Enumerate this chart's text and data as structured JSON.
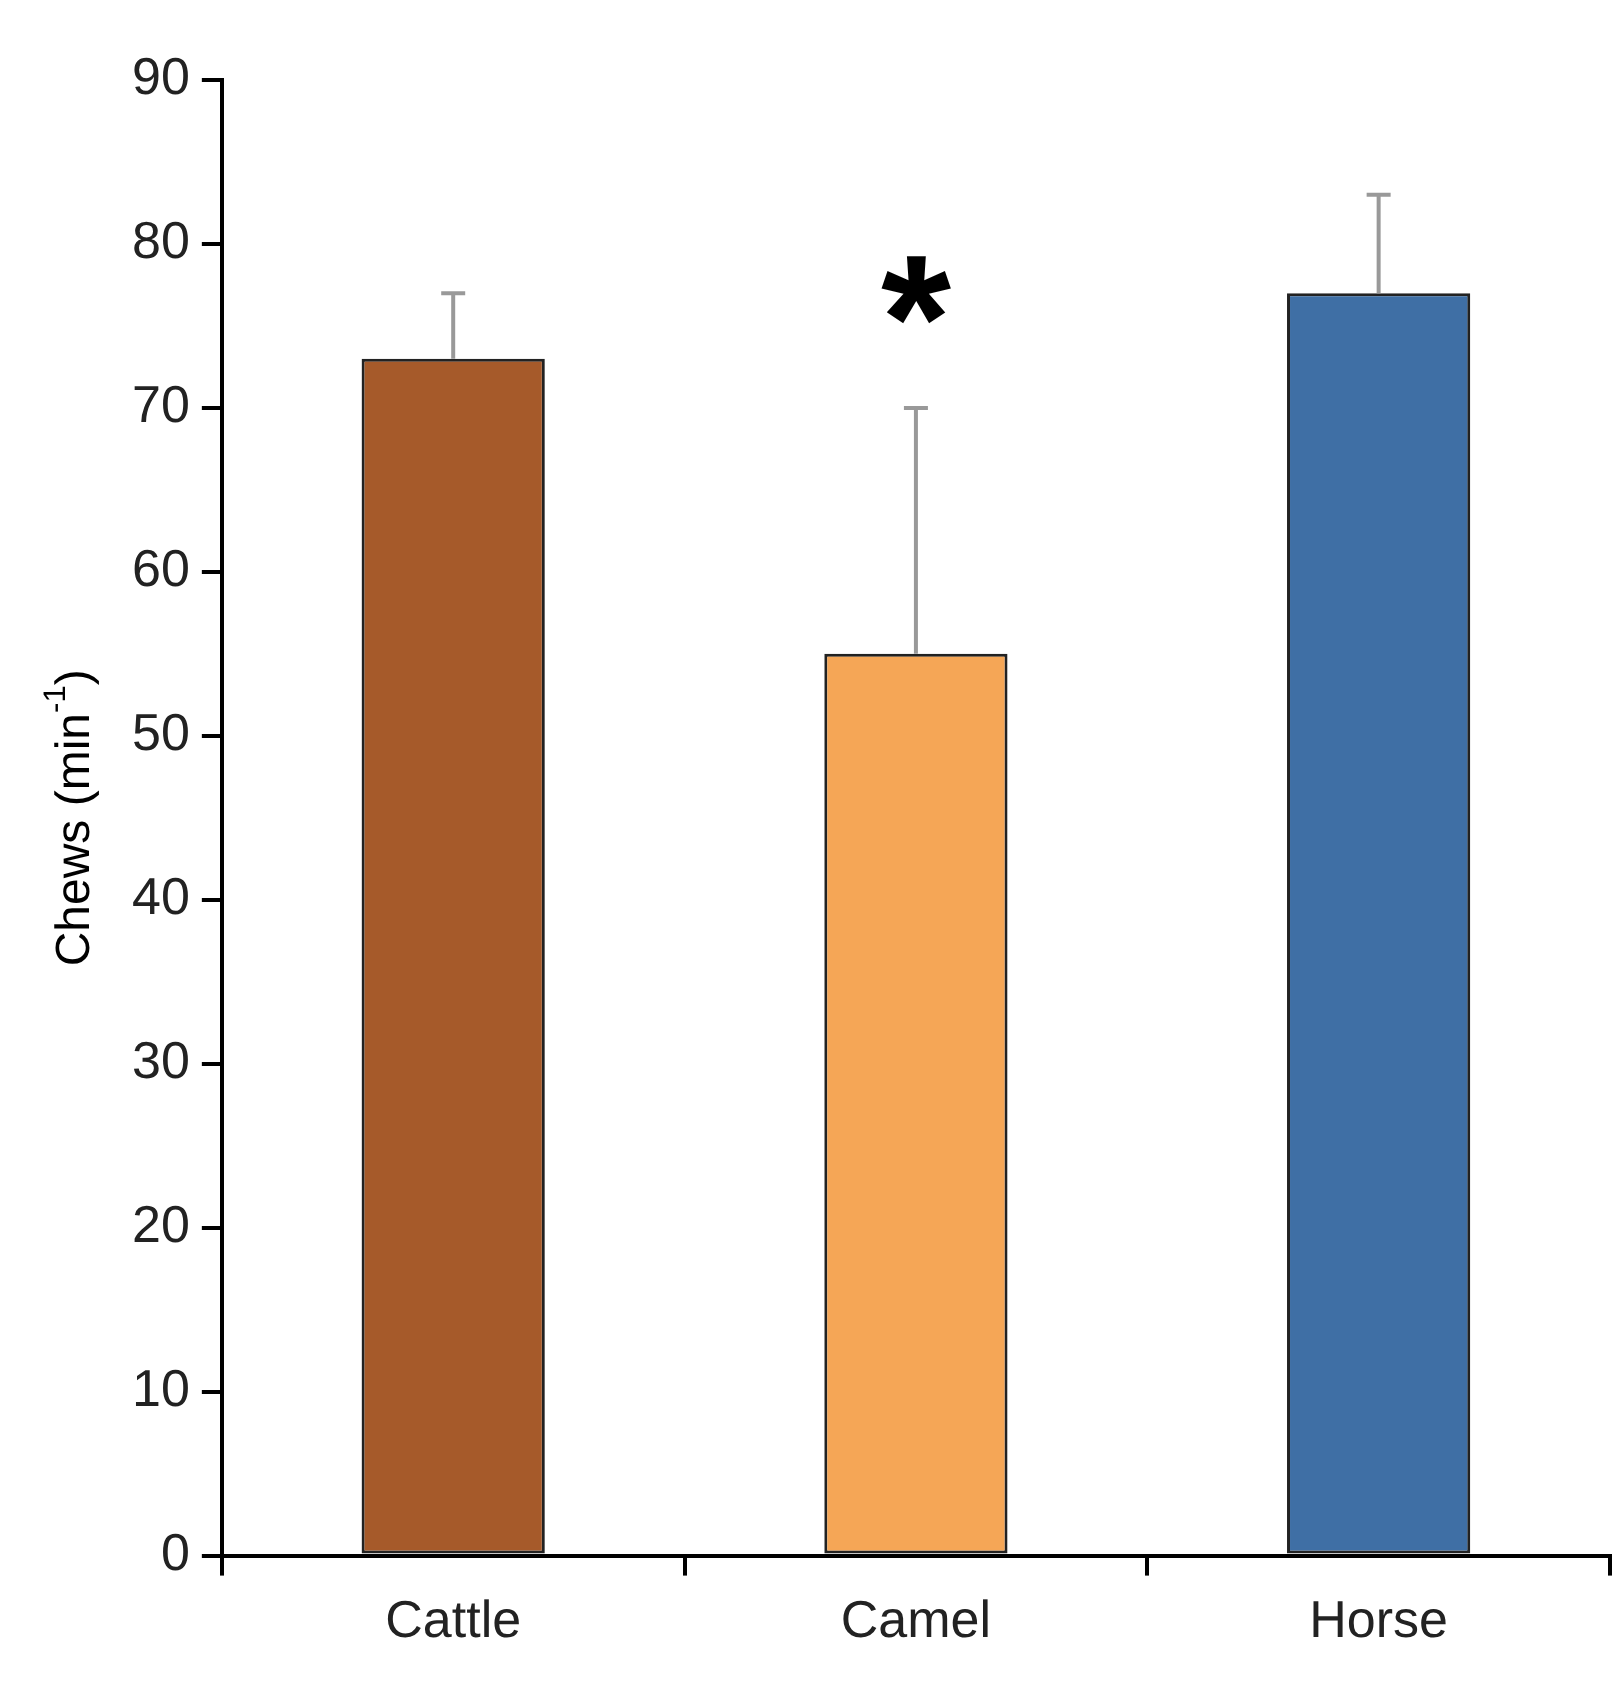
{
  "chart_data": {
    "type": "bar",
    "ylabel": "Chews (min$^{-1}$)",
    "categories": [
      "Cattle",
      "Camel",
      "Horse"
    ],
    "values": [
      73,
      55,
      77
    ],
    "colors": [
      "#a65a2a",
      "#f5a656",
      "#3f6fa5"
    ],
    "errors": [
      [
        73,
        77
      ],
      [
        55,
        70
      ],
      [
        77,
        83
      ]
    ],
    "ylim": [
      0,
      90
    ],
    "yticks": [
      0,
      10,
      20,
      30,
      40,
      50,
      60,
      70,
      80,
      90
    ],
    "grid": false,
    "legend": false,
    "annotations": [
      "*"
    ]
  }
}
